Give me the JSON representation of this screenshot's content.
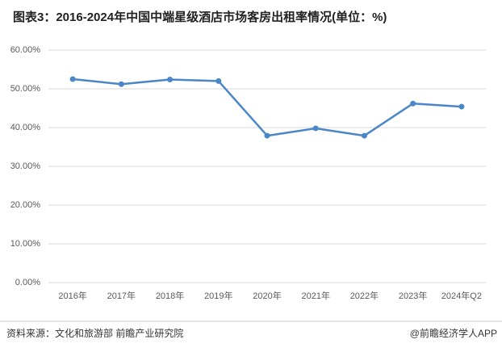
{
  "chart_data": {
    "type": "line",
    "title": "图表3：2016-2024年中国中端星级酒店市场客房出租率情况(单位：%)",
    "categories": [
      "2016年",
      "2017年",
      "2018年",
      "2019年",
      "2020年",
      "2021年",
      "2022年",
      "2023年",
      "2024年Q2"
    ],
    "series": [
      {
        "name": "客房出租率",
        "color": "#4a86c8",
        "values": [
          52.5,
          51.2,
          52.4,
          52.0,
          37.9,
          39.8,
          37.9,
          46.2,
          45.4
        ]
      }
    ],
    "ylim": [
      0,
      60
    ],
    "yticks": [
      {
        "value": 0,
        "label": "0.00%"
      },
      {
        "value": 10,
        "label": "10.00%"
      },
      {
        "value": 20,
        "label": "20.00%"
      },
      {
        "value": 30,
        "label": "30.00%"
      },
      {
        "value": 40,
        "label": "40.00%"
      },
      {
        "value": 50,
        "label": "50.00%"
      },
      {
        "value": 60,
        "label": "60.00%"
      }
    ],
    "grid": true,
    "source": "资料来源：文化和旅游部 前瞻产业研究院",
    "credit": "@前瞻经济学人APP"
  }
}
